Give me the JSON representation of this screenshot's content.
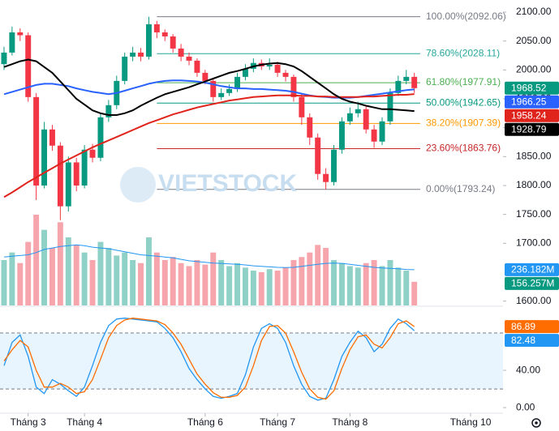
{
  "chart_data": {
    "type": "candlestick",
    "watermark": "VIETSTOCK",
    "xlim": [
      -0.5,
      59
    ],
    "xticks": [
      {
        "value": 3,
        "label": "Tháng 3"
      },
      {
        "value": 10,
        "label": "Tháng 4"
      },
      {
        "value": 25,
        "label": "Tháng 6"
      },
      {
        "value": 34,
        "label": "Tháng 7"
      },
      {
        "value": 43,
        "label": "Tháng 8"
      },
      {
        "value": 58,
        "label": "Tháng 10"
      }
    ],
    "ylim": [
      1592.5,
      2121
    ],
    "yticks": [
      {
        "value": 2100,
        "label": "2100.00"
      },
      {
        "value": 2050,
        "label": "2050.00"
      },
      {
        "value": 2000,
        "label": "2000.00"
      },
      {
        "value": 1950,
        "label": "1950.00"
      },
      {
        "value": 1900,
        "label": "1900.00"
      },
      {
        "value": 1850,
        "label": "1850.00"
      },
      {
        "value": 1800,
        "label": "1800.00"
      },
      {
        "value": 1750,
        "label": "1750.00"
      },
      {
        "value": 1700,
        "label": "1700.00"
      },
      {
        "value": 1600,
        "label": "1600.00"
      }
    ],
    "up_color": "#089981",
    "down_color": "#f23645",
    "open": [
      2010,
      2030,
      2065,
      2060,
      1953,
      1800,
      1897,
      1869,
      1764,
      1840,
      1800,
      1862,
      1848,
      1918,
      1939,
      1981,
      2023,
      2030,
      2023,
      2079,
      2065,
      2058,
      2037,
      2023,
      2016,
      1995,
      1981,
      1953,
      1960,
      1967,
      1988,
      2002,
      2012,
      2006,
      2009,
      1995,
      1988,
      1953,
      1918,
      1883,
      1820,
      1806,
      1862,
      1911,
      1925,
      1932,
      1897,
      1876,
      1911,
      1960,
      1981,
      1988
    ],
    "high": [
      2040,
      2075,
      2072,
      2065,
      1960,
      1910,
      1905,
      1875,
      1850,
      1848,
      1870,
      1872,
      1925,
      1948,
      1990,
      2030,
      2040,
      2038,
      2092,
      2085,
      2070,
      2062,
      2045,
      2030,
      2020,
      2000,
      1985,
      1968,
      1975,
      1995,
      2010,
      2020,
      2018,
      2020,
      2014,
      2000,
      1992,
      1958,
      1925,
      1890,
      1830,
      1870,
      1918,
      1935,
      1945,
      1938,
      1905,
      1918,
      1968,
      1990,
      2000,
      1995
    ],
    "low": [
      2000,
      2025,
      2050,
      1945,
      1775,
      1795,
      1860,
      1740,
      1755,
      1790,
      1795,
      1840,
      1842,
      1910,
      1932,
      1975,
      2015,
      2015,
      2018,
      2055,
      2050,
      2030,
      2015,
      2008,
      1988,
      1975,
      1945,
      1948,
      1955,
      1962,
      1982,
      1996,
      2000,
      2000,
      1988,
      1980,
      1945,
      1905,
      1870,
      1810,
      1793,
      1800,
      1855,
      1905,
      1918,
      1890,
      1865,
      1870,
      1905,
      1955,
      1975,
      1960
    ],
    "close": [
      2030,
      2065,
      2060,
      1953,
      1800,
      1897,
      1869,
      1764,
      1840,
      1800,
      1862,
      1848,
      1918,
      1939,
      1981,
      2023,
      2030,
      2023,
      2079,
      2065,
      2058,
      2037,
      2023,
      2016,
      1995,
      1981,
      1953,
      1960,
      1967,
      1988,
      2002,
      2012,
      2006,
      2009,
      1995,
      1988,
      1953,
      1918,
      1883,
      1820,
      1806,
      1862,
      1911,
      1925,
      1932,
      1897,
      1876,
      1911,
      1960,
      1981,
      1988,
      1968.52
    ],
    "moving_averages": [
      {
        "color": "#2962ff",
        "values": [
          1958,
          1962,
          1966,
          1970,
          1974,
          1976,
          1976,
          1974,
          1972,
          1968,
          1965,
          1962,
          1960,
          1958,
          1960,
          1964,
          1968,
          1972,
          1976,
          1979,
          1981,
          1982,
          1982,
          1981,
          1980,
          1978,
          1975,
          1972,
          1970,
          1968,
          1968,
          1967,
          1967,
          1966,
          1965,
          1964,
          1962,
          1959,
          1956,
          1954,
          1953,
          1952,
          1952,
          1952,
          1953,
          1955,
          1957,
          1959,
          1961,
          1963,
          1965,
          1966.25
        ]
      },
      {
        "color": "#e0241c",
        "values": [
          1780,
          1788,
          1797,
          1806,
          1814,
          1822,
          1830,
          1838,
          1845,
          1852,
          1859,
          1866,
          1872,
          1878,
          1884,
          1890,
          1896,
          1902,
          1908,
          1913,
          1918,
          1923,
          1927,
          1931,
          1935,
          1938,
          1941,
          1944,
          1947,
          1949,
          1951,
          1953,
          1954,
          1955,
          1956,
          1956,
          1956,
          1955,
          1955,
          1954,
          1954,
          1953,
          1953,
          1953,
          1953,
          1954,
          1954,
          1955,
          1956,
          1957,
          1957,
          1958.24
        ]
      },
      {
        "color": "#000000",
        "values": [
          2005,
          2010,
          2015,
          2018,
          2015,
          2005,
          1995,
          1980,
          1965,
          1950,
          1940,
          1930,
          1925,
          1922,
          1922,
          1925,
          1930,
          1938,
          1945,
          1952,
          1958,
          1962,
          1966,
          1970,
          1975,
          1980,
          1985,
          1990,
          1995,
          1998,
          2002,
          2006,
          2009,
          2011,
          2012,
          2010,
          2006,
          1998,
          1988,
          1978,
          1968,
          1958,
          1950,
          1945,
          1942,
          1938,
          1935,
          1932,
          1932,
          1931,
          1930,
          1928.79
        ]
      }
    ],
    "fib_levels": [
      {
        "value": 2092.06,
        "label": "100.00%(2092.06)",
        "color": "#787b86"
      },
      {
        "value": 2028.11,
        "label": "78.60%(2028.11)",
        "color": "#26a69a"
      },
      {
        "value": 1977.91,
        "label": "61.80%(1977.91)",
        "color": "#4caf50"
      },
      {
        "value": 1942.65,
        "label": "50.00%(1942.65)",
        "color": "#089981"
      },
      {
        "value": 1907.39,
        "label": "38.20%(1907.39)",
        "color": "#ff9800"
      },
      {
        "value": 1863.76,
        "label": "23.60%(1863.76)",
        "color": "#c62828"
      },
      {
        "value": 1793.24,
        "label": "0.00%(1793.24)",
        "color": "#787b86"
      }
    ],
    "volume": {
      "up_color": "#8fd1c6",
      "down_color": "#f5a5ab",
      "values": [
        300,
        350,
        280,
        420,
        600,
        500,
        380,
        550,
        450,
        400,
        350,
        300,
        420,
        380,
        330,
        350,
        300,
        280,
        450,
        350,
        300,
        320,
        280,
        260,
        300,
        270,
        350,
        300,
        260,
        280,
        250,
        230,
        220,
        240,
        230,
        250,
        300,
        320,
        350,
        400,
        380,
        300,
        280,
        260,
        250,
        280,
        300,
        260,
        300,
        250,
        230,
        156.257
      ],
      "last_label": "156.257M",
      "ma": {
        "color": "#2196f3",
        "last_label": "236.182M",
        "values": [
          320,
          325,
          330,
          335,
          350,
          370,
          380,
          390,
          395,
          400,
          395,
          385,
          380,
          375,
          365,
          355,
          345,
          335,
          330,
          325,
          320,
          315,
          305,
          295,
          290,
          285,
          280,
          278,
          275,
          272,
          268,
          262,
          258,
          255,
          252,
          250,
          252,
          258,
          265,
          272,
          278,
          280,
          278,
          272,
          265,
          258,
          252,
          248,
          245,
          242,
          238,
          236.182
        ]
      }
    },
    "stochastic": {
      "ylim": [
        -6,
        107
      ],
      "yticks": [
        {
          "value": 40,
          "label": "40.00"
        },
        {
          "value": 0,
          "label": "0.00"
        }
      ],
      "levels": [
        20,
        80
      ],
      "k": {
        "color": "#2196f3",
        "values": [
          45,
          70,
          78,
          55,
          22,
          15,
          30,
          25,
          18,
          12,
          22,
          45,
          70,
          88,
          95,
          96,
          95,
          94,
          93,
          92,
          85,
          75,
          60,
          42,
          30,
          20,
          12,
          10,
          12,
          15,
          35,
          65,
          85,
          90,
          85,
          70,
          45,
          25,
          12,
          8,
          10,
          30,
          55,
          70,
          82,
          75,
          60,
          68,
          85,
          95,
          90,
          82.48
        ]
      },
      "d": {
        "color": "#ff6d00",
        "values": [
          50,
          62,
          72,
          65,
          40,
          22,
          22,
          26,
          22,
          15,
          17,
          30,
          52,
          75,
          88,
          94,
          96,
          95,
          94,
          93,
          89,
          80,
          68,
          52,
          36,
          25,
          16,
          11,
          11,
          13,
          22,
          45,
          72,
          87,
          88,
          80,
          60,
          38,
          20,
          11,
          9,
          18,
          42,
          62,
          76,
          78,
          68,
          64,
          75,
          90,
          93,
          86.89
        ]
      }
    }
  }
}
